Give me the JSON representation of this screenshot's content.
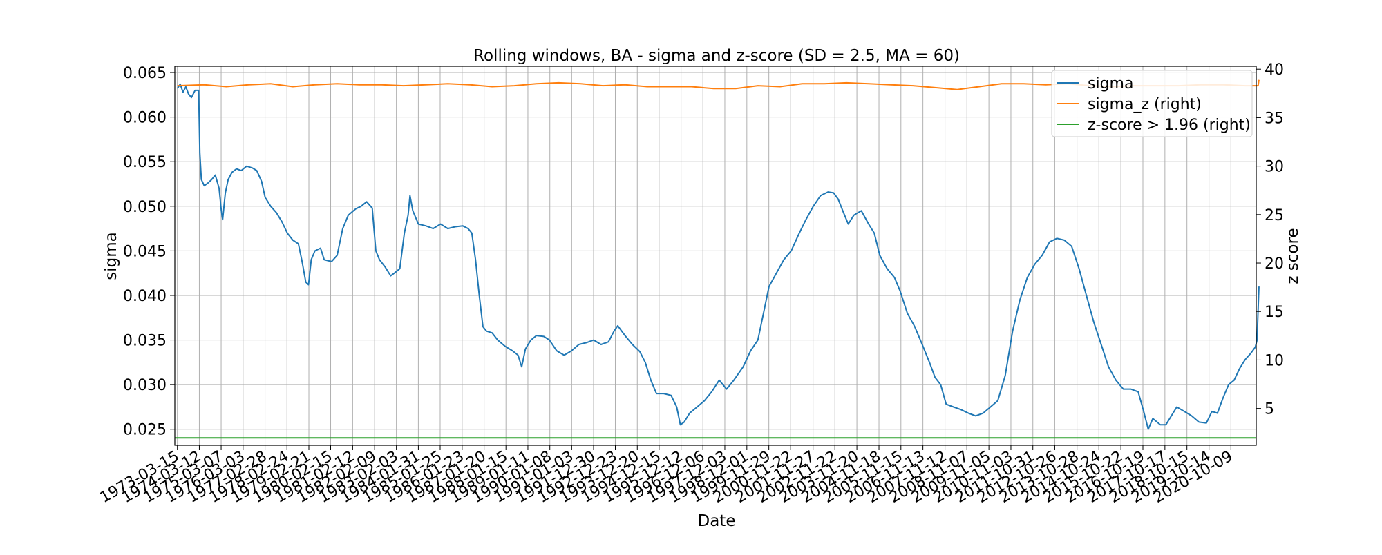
{
  "chart_data": {
    "type": "line",
    "title": "Rolling windows, BA - sigma and z-score (SD = 2.5, MA = 60)",
    "xlabel": "Date",
    "ylabel": "sigma",
    "y2label": "z score",
    "grid": true,
    "legend_position": "top-right",
    "xlim": [
      "1973-02-01",
      "2021-12-01"
    ],
    "ylim": [
      0.0232,
      0.0657
    ],
    "y2lim": [
      1.2,
      40.3
    ],
    "x_tick_labels": [
      "1973-03-15",
      "1974-03-12",
      "1975-03-07",
      "1976-03-03",
      "1977-02-28",
      "1978-02-24",
      "1979-02-21",
      "1980-02-15",
      "1981-02-12",
      "1982-02-09",
      "1983-02-03",
      "1984-01-31",
      "1985-01-25",
      "1986-01-23",
      "1987-01-20",
      "1988-01-15",
      "1989-01-11",
      "1990-01-08",
      "1991-01-03",
      "1991-12-30",
      "1992-12-23",
      "1993-12-20",
      "1994-12-15",
      "1995-12-12",
      "1996-12-06",
      "1997-12-03",
      "1998-12-01",
      "1999-11-29",
      "2000-11-22",
      "2001-11-27",
      "2002-11-22",
      "2003-11-20",
      "2004-11-18",
      "2005-11-15",
      "2006-11-13",
      "2007-11-12",
      "2008-11-07",
      "2009-11-05",
      "2010-11-03",
      "2011-10-31",
      "2012-10-26",
      "2013-10-28",
      "2014-10-24",
      "2015-10-22",
      "2016-10-19",
      "2017-10-17",
      "2018-10-15",
      "2019-10-14",
      "2020-10-09"
    ],
    "y_ticks": [
      0.025,
      0.03,
      0.035,
      0.04,
      0.045,
      0.05,
      0.055,
      0.06,
      0.065
    ],
    "y2_ticks": [
      5,
      10,
      15,
      20,
      25,
      30,
      35,
      40
    ],
    "colors": {
      "sigma": "#1f77b4",
      "sigma_z": "#ff7f0e",
      "threshold": "#2ca02c",
      "grid": "#b0b0b0"
    },
    "series": [
      {
        "name": "sigma",
        "axis": "left",
        "points": [
          [
            "1973-03-15",
            0.0632
          ],
          [
            "1973-05-01",
            0.0637
          ],
          [
            "1973-06-15",
            0.0628
          ],
          [
            "1973-08-01",
            0.0634
          ],
          [
            "1973-09-15",
            0.0626
          ],
          [
            "1973-11-01",
            0.0622
          ],
          [
            "1974-01-01",
            0.063
          ],
          [
            "1974-03-01",
            0.063
          ],
          [
            "1974-03-20",
            0.056
          ],
          [
            "1974-04-15",
            0.053
          ],
          [
            "1974-06-01",
            0.0523
          ],
          [
            "1974-08-01",
            0.0526
          ],
          [
            "1974-10-01",
            0.053
          ],
          [
            "1974-12-01",
            0.0535
          ],
          [
            "1975-02-01",
            0.052
          ],
          [
            "1975-03-10",
            0.0495
          ],
          [
            "1975-04-01",
            0.0485
          ],
          [
            "1975-05-15",
            0.0515
          ],
          [
            "1975-07-01",
            0.053
          ],
          [
            "1975-09-01",
            0.0538
          ],
          [
            "1975-11-15",
            0.0542
          ],
          [
            "1976-02-01",
            0.054
          ],
          [
            "1976-05-01",
            0.0545
          ],
          [
            "1976-08-01",
            0.0543
          ],
          [
            "1976-10-15",
            0.054
          ],
          [
            "1977-01-01",
            0.0528
          ],
          [
            "1977-03-01",
            0.051
          ],
          [
            "1977-06-01",
            0.05
          ],
          [
            "1977-09-01",
            0.0493
          ],
          [
            "1977-12-01",
            0.0483
          ],
          [
            "1978-03-01",
            0.047
          ],
          [
            "1978-06-01",
            0.0462
          ],
          [
            "1978-09-01",
            0.0458
          ],
          [
            "1978-11-01",
            0.0438
          ],
          [
            "1979-01-01",
            0.0415
          ],
          [
            "1979-02-15",
            0.0412
          ],
          [
            "1979-04-01",
            0.044
          ],
          [
            "1979-06-01",
            0.045
          ],
          [
            "1979-09-01",
            0.0453
          ],
          [
            "1979-11-01",
            0.044
          ],
          [
            "1980-03-01",
            0.0438
          ],
          [
            "1980-06-01",
            0.0445
          ],
          [
            "1980-09-01",
            0.0475
          ],
          [
            "1980-12-01",
            0.049
          ],
          [
            "1981-04-01",
            0.0497
          ],
          [
            "1981-07-01",
            0.05
          ],
          [
            "1981-10-01",
            0.0505
          ],
          [
            "1982-01-01",
            0.0498
          ],
          [
            "1982-03-01",
            0.045
          ],
          [
            "1982-05-01",
            0.044
          ],
          [
            "1982-08-01",
            0.0432
          ],
          [
            "1982-11-01",
            0.0422
          ],
          [
            "1983-01-01",
            0.0425
          ],
          [
            "1983-04-01",
            0.043
          ],
          [
            "1983-06-15",
            0.047
          ],
          [
            "1983-08-15",
            0.049
          ],
          [
            "1983-09-15",
            0.0512
          ],
          [
            "1983-11-01",
            0.0495
          ],
          [
            "1984-02-01",
            0.048
          ],
          [
            "1984-06-01",
            0.0478
          ],
          [
            "1984-10-01",
            0.0475
          ],
          [
            "1985-02-01",
            0.048
          ],
          [
            "1985-06-01",
            0.0475
          ],
          [
            "1985-10-01",
            0.0477
          ],
          [
            "1986-02-01",
            0.0478
          ],
          [
            "1986-05-01",
            0.0475
          ],
          [
            "1986-07-01",
            0.047
          ],
          [
            "1986-09-01",
            0.044
          ],
          [
            "1986-11-01",
            0.04
          ],
          [
            "1987-01-01",
            0.0365
          ],
          [
            "1987-03-01",
            0.036
          ],
          [
            "1987-06-01",
            0.0358
          ],
          [
            "1987-09-01",
            0.035
          ],
          [
            "1988-01-01",
            0.0343
          ],
          [
            "1988-05-01",
            0.0338
          ],
          [
            "1988-08-01",
            0.0333
          ],
          [
            "1988-10-01",
            0.032
          ],
          [
            "1988-12-01",
            0.034
          ],
          [
            "1989-03-01",
            0.035
          ],
          [
            "1989-06-01",
            0.0355
          ],
          [
            "1989-10-01",
            0.0354
          ],
          [
            "1990-01-01",
            0.035
          ],
          [
            "1990-05-01",
            0.0338
          ],
          [
            "1990-09-01",
            0.0333
          ],
          [
            "1991-01-01",
            0.0338
          ],
          [
            "1991-05-01",
            0.0345
          ],
          [
            "1991-09-01",
            0.0347
          ],
          [
            "1992-01-01",
            0.035
          ],
          [
            "1992-05-01",
            0.0345
          ],
          [
            "1992-09-01",
            0.0348
          ],
          [
            "1992-12-01",
            0.036
          ],
          [
            "1993-02-01",
            0.0366
          ],
          [
            "1993-06-01",
            0.0355
          ],
          [
            "1993-10-01",
            0.0345
          ],
          [
            "1994-02-01",
            0.0337
          ],
          [
            "1994-05-01",
            0.0325
          ],
          [
            "1994-08-01",
            0.0305
          ],
          [
            "1994-11-01",
            0.029
          ],
          [
            "1995-03-01",
            0.029
          ],
          [
            "1995-07-01",
            0.0288
          ],
          [
            "1995-10-01",
            0.0275
          ],
          [
            "1995-12-01",
            0.0255
          ],
          [
            "1996-02-01",
            0.0258
          ],
          [
            "1996-05-01",
            0.0268
          ],
          [
            "1996-09-01",
            0.0275
          ],
          [
            "1997-01-01",
            0.0282
          ],
          [
            "1997-05-01",
            0.0292
          ],
          [
            "1997-09-01",
            0.0305
          ],
          [
            "1998-01-01",
            0.0295
          ],
          [
            "1998-05-01",
            0.0305
          ],
          [
            "1998-10-01",
            0.032
          ],
          [
            "1999-02-01",
            0.0338
          ],
          [
            "1999-06-01",
            0.035
          ],
          [
            "1999-09-01",
            0.038
          ],
          [
            "1999-12-01",
            0.041
          ],
          [
            "2000-04-01",
            0.0425
          ],
          [
            "2000-08-01",
            0.044
          ],
          [
            "2000-12-01",
            0.045
          ],
          [
            "2001-04-01",
            0.0468
          ],
          [
            "2001-08-01",
            0.0485
          ],
          [
            "2001-12-01",
            0.05
          ],
          [
            "2002-04-01",
            0.0512
          ],
          [
            "2002-08-01",
            0.0516
          ],
          [
            "2002-11-01",
            0.0515
          ],
          [
            "2003-01-15",
            0.0508
          ],
          [
            "2003-04-01",
            0.0495
          ],
          [
            "2003-07-01",
            0.048
          ],
          [
            "2003-10-01",
            0.049
          ],
          [
            "2004-02-01",
            0.0495
          ],
          [
            "2004-06-01",
            0.048
          ],
          [
            "2004-09-01",
            0.047
          ],
          [
            "2004-12-01",
            0.0445
          ],
          [
            "2005-04-01",
            0.043
          ],
          [
            "2005-08-01",
            0.042
          ],
          [
            "2005-11-01",
            0.0405
          ],
          [
            "2006-03-01",
            0.038
          ],
          [
            "2006-07-01",
            0.0365
          ],
          [
            "2006-11-01",
            0.0345
          ],
          [
            "2007-03-01",
            0.0325
          ],
          [
            "2007-06-01",
            0.0308
          ],
          [
            "2007-09-01",
            0.03
          ],
          [
            "2007-12-01",
            0.0278
          ],
          [
            "2008-04-01",
            0.0275
          ],
          [
            "2008-08-01",
            0.0272
          ],
          [
            "2008-12-01",
            0.0268
          ],
          [
            "2009-04-01",
            0.0265
          ],
          [
            "2009-08-01",
            0.0268
          ],
          [
            "2009-12-01",
            0.0275
          ],
          [
            "2010-04-01",
            0.0282
          ],
          [
            "2010-08-01",
            0.031
          ],
          [
            "2010-12-01",
            0.036
          ],
          [
            "2011-04-01",
            0.0395
          ],
          [
            "2011-08-01",
            0.042
          ],
          [
            "2011-12-01",
            0.0435
          ],
          [
            "2012-04-01",
            0.0445
          ],
          [
            "2012-08-01",
            0.046
          ],
          [
            "2012-12-01",
            0.0464
          ],
          [
            "2013-04-01",
            0.0462
          ],
          [
            "2013-08-01",
            0.0455
          ],
          [
            "2013-12-01",
            0.043
          ],
          [
            "2014-04-01",
            0.04
          ],
          [
            "2014-08-01",
            0.037
          ],
          [
            "2014-12-01",
            0.0345
          ],
          [
            "2015-04-01",
            0.032
          ],
          [
            "2015-08-01",
            0.0305
          ],
          [
            "2015-12-01",
            0.0295
          ],
          [
            "2016-04-01",
            0.0295
          ],
          [
            "2016-08-01",
            0.0292
          ],
          [
            "2016-11-01",
            0.027
          ],
          [
            "2017-01-15",
            0.025
          ],
          [
            "2017-04-01",
            0.0262
          ],
          [
            "2017-08-01",
            0.0255
          ],
          [
            "2017-11-01",
            0.0255
          ],
          [
            "2018-02-01",
            0.0265
          ],
          [
            "2018-05-01",
            0.0275
          ],
          [
            "2018-09-01",
            0.027
          ],
          [
            "2019-01-01",
            0.0265
          ],
          [
            "2019-05-01",
            0.0258
          ],
          [
            "2019-09-01",
            0.0257
          ],
          [
            "2019-12-01",
            0.027
          ],
          [
            "2020-03-01",
            0.0268
          ],
          [
            "2020-06-01",
            0.0285
          ],
          [
            "2020-09-01",
            0.03
          ],
          [
            "2020-12-01",
            0.0305
          ],
          [
            "2021-03-01",
            0.0318
          ],
          [
            "2021-06-01",
            0.0328
          ],
          [
            "2021-09-01",
            0.0335
          ],
          [
            "2021-11-15",
            0.0342
          ],
          [
            "2021-12-15",
            0.035
          ],
          [
            "2022-01-15",
            0.041
          ]
        ]
      },
      {
        "name": "sigma_z (right)",
        "axis": "right",
        "points": [
          [
            "1973-03-15",
            38.3
          ],
          [
            "1974-06-01",
            38.4
          ],
          [
            "1975-06-01",
            38.2
          ],
          [
            "1976-06-01",
            38.4
          ],
          [
            "1977-06-01",
            38.5
          ],
          [
            "1978-06-01",
            38.2
          ],
          [
            "1979-06-01",
            38.4
          ],
          [
            "1980-06-01",
            38.5
          ],
          [
            "1981-06-01",
            38.4
          ],
          [
            "1982-06-01",
            38.4
          ],
          [
            "1983-06-01",
            38.3
          ],
          [
            "1984-06-01",
            38.4
          ],
          [
            "1985-06-01",
            38.5
          ],
          [
            "1986-06-01",
            38.4
          ],
          [
            "1987-06-01",
            38.2
          ],
          [
            "1988-06-01",
            38.3
          ],
          [
            "1989-06-01",
            38.5
          ],
          [
            "1990-06-01",
            38.6
          ],
          [
            "1991-06-01",
            38.5
          ],
          [
            "1992-06-01",
            38.3
          ],
          [
            "1993-06-01",
            38.4
          ],
          [
            "1994-06-01",
            38.2
          ],
          [
            "1995-06-01",
            38.2
          ],
          [
            "1996-06-01",
            38.2
          ],
          [
            "1997-06-01",
            38.0
          ],
          [
            "1998-06-01",
            38.0
          ],
          [
            "1999-06-01",
            38.3
          ],
          [
            "2000-06-01",
            38.2
          ],
          [
            "2001-06-01",
            38.5
          ],
          [
            "2002-06-01",
            38.5
          ],
          [
            "2003-06-01",
            38.6
          ],
          [
            "2004-06-01",
            38.5
          ],
          [
            "2005-06-01",
            38.4
          ],
          [
            "2006-06-01",
            38.3
          ],
          [
            "2007-06-01",
            38.1
          ],
          [
            "2008-06-01",
            37.9
          ],
          [
            "2009-06-01",
            38.2
          ],
          [
            "2010-06-01",
            38.5
          ],
          [
            "2011-06-01",
            38.5
          ],
          [
            "2012-06-01",
            38.4
          ],
          [
            "2013-06-01",
            38.5
          ],
          [
            "2014-06-01",
            38.3
          ],
          [
            "2015-06-01",
            38.2
          ],
          [
            "2016-06-01",
            38.3
          ],
          [
            "2017-06-01",
            38.3
          ],
          [
            "2018-06-01",
            38.3
          ],
          [
            "2019-06-01",
            38.4
          ],
          [
            "2020-06-01",
            38.4
          ],
          [
            "2021-06-01",
            38.3
          ],
          [
            "2022-01-01",
            38.3
          ],
          [
            "2022-01-15",
            38.9
          ]
        ]
      },
      {
        "name": "z-score > 1.96 (right)",
        "axis": "right",
        "points": [
          [
            "1973-02-01",
            1.96
          ],
          [
            "2021-12-01",
            1.96
          ]
        ]
      }
    ]
  }
}
